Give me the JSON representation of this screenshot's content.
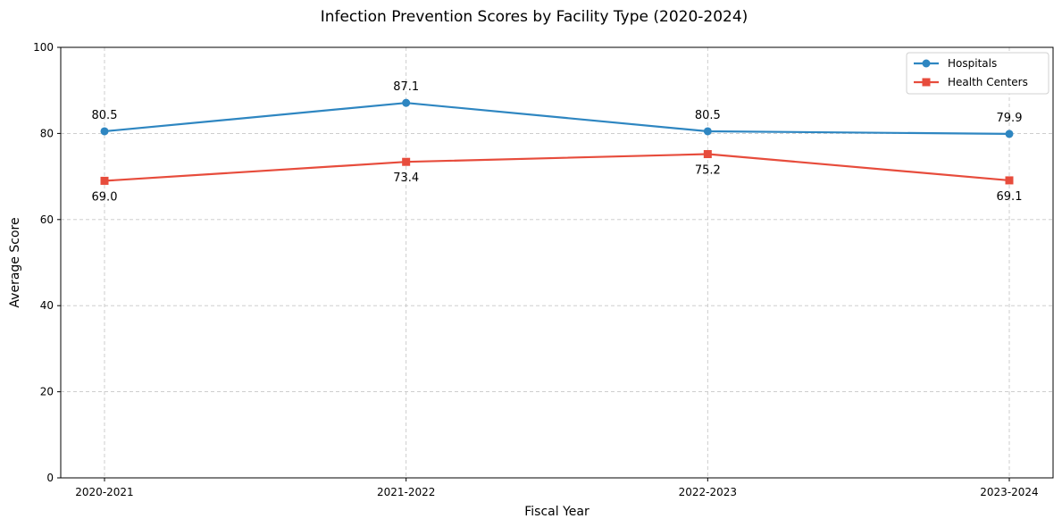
{
  "chart_data": {
    "type": "line",
    "title": "Infection Prevention Scores by Facility Type (2020-2024)",
    "xlabel": "Fiscal Year",
    "ylabel": "Average Score",
    "categories": [
      "2020-2021",
      "2021-2022",
      "2022-2023",
      "2023-2024"
    ],
    "ylim": [
      0,
      100
    ],
    "yticks": [
      0,
      20,
      40,
      60,
      80,
      100
    ],
    "grid": true,
    "legend_position": "top-right",
    "series": [
      {
        "name": "Hospitals",
        "values": [
          80.5,
          87.1,
          80.5,
          79.9
        ],
        "labels": [
          "80.5",
          "87.1",
          "80.5",
          "79.9"
        ],
        "color": "#2e86c1",
        "marker": "circle",
        "label_position": "above"
      },
      {
        "name": "Health Centers",
        "values": [
          69.0,
          73.4,
          75.2,
          69.1
        ],
        "labels": [
          "69.0",
          "73.4",
          "75.2",
          "69.1"
        ],
        "color": "#e74c3c",
        "marker": "square",
        "label_position": "below"
      }
    ]
  }
}
